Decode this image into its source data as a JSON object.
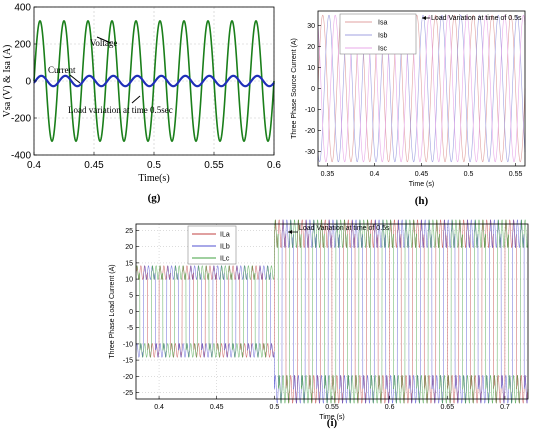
{
  "chart_data": [
    {
      "type": "line",
      "panel_label": "(g)",
      "xlabel": "Time(s)",
      "ylabel": "Vsa (V) & Isa (A)",
      "xlim": [
        0.4,
        0.6
      ],
      "ylim": [
        -400,
        400
      ],
      "x_ticks": [
        "0.4",
        "0.45",
        "0.5",
        "0.55",
        "0.6"
      ],
      "y_ticks": [
        "400",
        "200",
        "0",
        "-200",
        "-400"
      ],
      "grid": true,
      "series": [
        {
          "name": "Voltage",
          "color": "#1a7f1a",
          "waveform": "sine",
          "amplitude": 325,
          "frequency_hz": 50,
          "values": []
        },
        {
          "name": "Current",
          "color": "#1f2fb8",
          "waveform": "sine",
          "amplitude": 28,
          "frequency_hz": 50,
          "values": []
        }
      ],
      "annotations": [
        "Voltage",
        "Current",
        "Load variation at time 0.5sec"
      ]
    },
    {
      "type": "line",
      "panel_label": "(h)",
      "xlabel": "Time (s)",
      "ylabel": "Three Phase Source Current (A)",
      "xlim": [
        0.34,
        0.56
      ],
      "ylim": [
        -37,
        37
      ],
      "x_ticks": [
        "0.35",
        "0.4",
        "0.45",
        "0.5",
        "0.55"
      ],
      "y_ticks": [
        "30",
        "20",
        "10",
        "0",
        "-10",
        "-20",
        "-30"
      ],
      "grid": false,
      "series": [
        {
          "name": "Isa",
          "color": "#e0a0a0",
          "amplitude": 35,
          "frequency_hz": 50,
          "phase_deg": 0
        },
        {
          "name": "Isb",
          "color": "#a0a0e0",
          "amplitude": 35,
          "frequency_hz": 50,
          "phase_deg": -120
        },
        {
          "name": "Isc",
          "color": "#e8a8e8",
          "amplitude": 35,
          "frequency_hz": 50,
          "phase_deg": 120
        }
      ],
      "annotations": [
        "Load Variation at time of 0.5s"
      ]
    },
    {
      "type": "line",
      "panel_label": "(i)",
      "xlabel": "Time (s)",
      "ylabel": "Three Phase Load Current (A)",
      "xlim": [
        0.38,
        0.72
      ],
      "ylim": [
        -27,
        27
      ],
      "x_ticks": [
        "0.4",
        "0.45",
        "0.5",
        "0.55",
        "0.6",
        "0.65",
        "0.7"
      ],
      "y_ticks": [
        "25",
        "20",
        "15",
        "10",
        "5",
        "0",
        "-5",
        "-10",
        "-15",
        "-20",
        "-25"
      ],
      "grid": true,
      "series": [
        {
          "name": "ILa",
          "color": "#c04040",
          "level_before": 12,
          "level_after": 24,
          "step_time": 0.5
        },
        {
          "name": "ILb",
          "color": "#5050d0",
          "level_before": 12,
          "level_after": 24,
          "step_time": 0.5
        },
        {
          "name": "ILc",
          "color": "#40a040",
          "level_before": 12,
          "level_after": 24,
          "step_time": 0.5
        }
      ],
      "annotations": [
        "Load Variation at time of 0.5s"
      ]
    }
  ]
}
